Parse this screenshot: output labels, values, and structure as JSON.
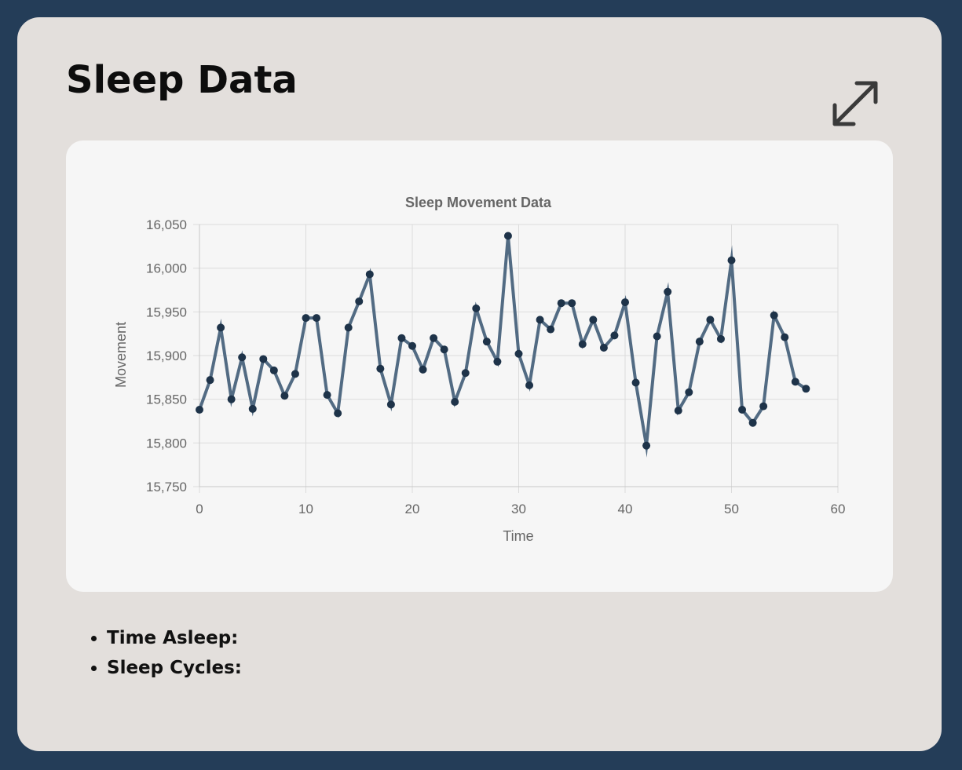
{
  "page": {
    "title": "Sleep Data",
    "expand_icon": "expand-arrows-icon",
    "colors": {
      "background": "#243d58",
      "card": "#e3dfdc",
      "panel": "#f6f6f6",
      "line": "#526b83",
      "point": "#1e3349"
    }
  },
  "stats": {
    "time_asleep_label": "Time Asleep:",
    "sleep_cycles_label": "Sleep Cycles:"
  },
  "chart_data": {
    "type": "line",
    "title": "Sleep Movement Data",
    "xlabel": "Time",
    "ylabel": "Movement",
    "xlim": [
      0,
      60
    ],
    "ylim": [
      15750,
      16050
    ],
    "x_ticks": [
      0,
      10,
      20,
      30,
      40,
      50,
      60
    ],
    "y_ticks": [
      15750,
      15800,
      15850,
      15900,
      15950,
      16000,
      16050
    ],
    "y_tick_labels": [
      "15,750",
      "15,800",
      "15,850",
      "15,900",
      "15,950",
      "16,000",
      "16,050"
    ],
    "grid": true,
    "legend": "none",
    "series": [
      {
        "x": [
          0,
          1,
          2,
          3,
          4,
          5,
          6,
          7,
          8,
          9,
          10,
          11,
          12,
          13,
          14,
          15,
          16,
          17,
          18,
          19,
          20,
          21,
          22,
          23,
          24,
          25,
          26,
          27,
          28,
          29,
          30,
          31,
          32,
          33,
          34,
          35,
          36,
          37,
          38,
          39,
          40,
          41,
          42,
          43,
          44,
          45,
          46,
          47,
          48,
          49,
          50,
          51,
          52,
          53,
          54,
          55,
          56,
          57
        ],
        "values": [
          15838,
          15872,
          15932,
          15850,
          15898,
          15839,
          15896,
          15883,
          15854,
          15879,
          15943,
          15943,
          15855,
          15834,
          15932,
          15962,
          15993,
          15885,
          15844,
          15920,
          15911,
          15884,
          15920,
          15907,
          15847,
          15880,
          15954,
          15916,
          15893,
          16037,
          15902,
          15866,
          15941,
          15930,
          15960,
          15960,
          15913,
          15941,
          15909,
          15923,
          15961,
          15869,
          15797,
          15922,
          15973,
          15837,
          15858,
          15916,
          15941,
          15919,
          16009,
          15838,
          15823,
          15842,
          15946,
          15921,
          15870,
          15862
        ]
      }
    ]
  }
}
